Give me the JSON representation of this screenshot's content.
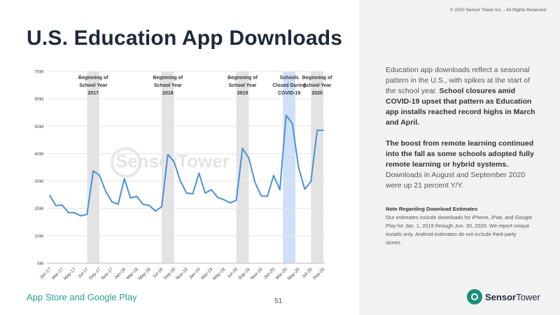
{
  "copyright": "© 2020 Sensor Tower Inc. - All Rights Reserved",
  "title": "U.S. Education App Downloads",
  "body": {
    "p1_normal": "Education app downloads reflect a seasonal pattern in the U.S., with spikes at the start of the school year.",
    "p1_bold": "School closures amid COVID-19 upset that pattern as Education app installs reached record highs in March and April.",
    "p2_bold": "The boost from remote learning continued into the fall as some schools adopted fully remote learning or hybrid systems.",
    "p2_normal": "Downloads in August and September 2020 were up 21 percent Y/Y."
  },
  "note": {
    "title": "Note Regarding Download Estimates",
    "text": "Our estimates include downloads for iPhone, iPad, and Google Play for Jan. 1, 2019 through Jun. 30, 2020. We report unique installs only. Android estimates do not include third-party stores."
  },
  "footer": {
    "source": "App Store and Google Play",
    "page": "51",
    "logo_bold": "Sensor",
    "logo_normal": "Tower"
  },
  "watermark": "SensorTower",
  "colors": {
    "line": "#4a90d9",
    "highlight_gray": "#e3e3e3",
    "highlight_blue": "#cde0f7",
    "accent": "#2a9d8f"
  },
  "chart_data": {
    "type": "line",
    "ylim": [
      0,
      70
    ],
    "yticks": [
      "0M",
      "10M",
      "20M",
      "30M",
      "40M",
      "50M",
      "60M",
      "70M"
    ],
    "x": [
      "Jan-17",
      "Feb-17",
      "Mar-17",
      "Apr-17",
      "May-17",
      "Jun-17",
      "Jul-17",
      "Aug-17",
      "Sep-17",
      "Oct-17",
      "Nov-17",
      "Dec-17",
      "Jan-18",
      "Feb-18",
      "Mar-18",
      "Apr-18",
      "May-18",
      "Jun-18",
      "Jul-18",
      "Aug-18",
      "Sep-18",
      "Oct-18",
      "Nov-18",
      "Dec-18",
      "Jan-19",
      "Feb-19",
      "Mar-19",
      "Apr-19",
      "May-19",
      "Jun-19",
      "Jul-19",
      "Aug-19",
      "Sep-19",
      "Oct-19",
      "Nov-19",
      "Dec-19",
      "Jan-20",
      "Feb-20",
      "Mar-20",
      "Apr-20",
      "May-20",
      "Jun-20",
      "Jul-20",
      "Aug-20",
      "Sep-20"
    ],
    "xtick_labels": [
      "Jan-17",
      "Mar-17",
      "May-17",
      "Jul-17",
      "Sep-17",
      "Nov-17",
      "Jan-18",
      "Mar-18",
      "May-18",
      "Jul-18",
      "Sep-18",
      "Nov-18",
      "Jan-19",
      "Mar-19",
      "May-19",
      "Jul-19",
      "Sep-19",
      "Nov-19",
      "Jan-20",
      "Mar-20",
      "May-20",
      "Jul-20",
      "Sep-20"
    ],
    "values": [
      24.8,
      21.0,
      21.2,
      18.5,
      18.4,
      17.3,
      17.8,
      33.7,
      32.1,
      26.2,
      22.4,
      21.5,
      30.8,
      23.8,
      24.4,
      21.5,
      21.1,
      19.0,
      20.6,
      39.7,
      37.0,
      30.0,
      25.6,
      25.3,
      32.8,
      25.6,
      26.8,
      24.0,
      23.2,
      22.0,
      23.0,
      41.9,
      38.4,
      29.5,
      24.6,
      24.4,
      32.0,
      26.8,
      54.0,
      51.0,
      35.0,
      27.0,
      29.8,
      48.5,
      48.5
    ],
    "highlights": [
      {
        "month": "Aug-17",
        "label": [
          "Beginning of",
          "School Year",
          "2017"
        ],
        "color": "gray"
      },
      {
        "month": "Aug-18",
        "label": [
          "Beginning of",
          "School Year",
          "2018"
        ],
        "color": "gray"
      },
      {
        "month": "Aug-19",
        "label": [
          "Beginning of",
          "School Year",
          "2019"
        ],
        "color": "gray"
      },
      {
        "month": "Mar-20",
        "label": [
          "Schools",
          "Closed During",
          "COVID-19"
        ],
        "color": "blue",
        "span": [
          "Mar-20",
          "Apr-20"
        ]
      },
      {
        "month": "Aug-20",
        "label": [
          "Beginning of",
          "School Year",
          "2020"
        ],
        "color": "gray"
      }
    ],
    "grid": true
  }
}
